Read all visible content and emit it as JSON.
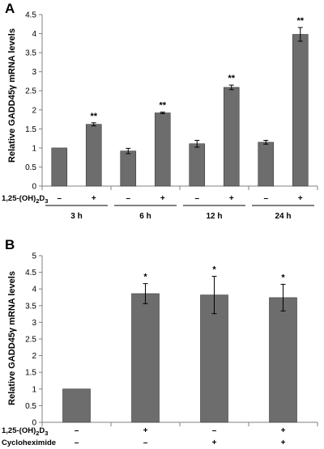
{
  "chart_data": [
    {
      "panel_label": "A",
      "type": "bar",
      "ylabel": "Relative GADD45γ mRNA levels",
      "ylim": [
        0,
        4.5
      ],
      "ytick_step": 0.5,
      "yticks": [
        "0",
        "0.5",
        "1",
        "1.5",
        "2",
        "2.5",
        "3",
        "3.5",
        "4",
        "4.5"
      ],
      "grid": false,
      "treatment_label": "1,25-(OH)2D3",
      "treatment_label_parts": [
        "1,25-(OH)",
        "2",
        "D",
        "3"
      ],
      "groups": [
        {
          "label": "3 h",
          "bars": [
            {
              "sign": "–",
              "value": 1.0,
              "err": 0,
              "sig": ""
            },
            {
              "sign": "+",
              "value": 1.62,
              "err": 0.04,
              "sig": "**"
            }
          ]
        },
        {
          "label": "6 h",
          "bars": [
            {
              "sign": "–",
              "value": 0.92,
              "err": 0.07,
              "sig": ""
            },
            {
              "sign": "+",
              "value": 1.92,
              "err": 0.02,
              "sig": "**"
            }
          ]
        },
        {
          "label": "12 h",
          "bars": [
            {
              "sign": "–",
              "value": 1.11,
              "err": 0.09,
              "sig": ""
            },
            {
              "sign": "+",
              "value": 2.59,
              "err": 0.06,
              "sig": "**"
            }
          ]
        },
        {
          "label": "24 h",
          "bars": [
            {
              "sign": "–",
              "value": 1.15,
              "err": 0.05,
              "sig": ""
            },
            {
              "sign": "+",
              "value": 3.98,
              "err": 0.18,
              "sig": "**"
            }
          ]
        }
      ]
    },
    {
      "panel_label": "B",
      "type": "bar",
      "ylabel": "Relative GADD45γ mRNA levels",
      "ylim": [
        0,
        5
      ],
      "ytick_step": 0.5,
      "yticks": [
        "0",
        "0.5",
        "1",
        "1.5",
        "2",
        "2.5",
        "3",
        "3.5",
        "4",
        "4.5",
        "5"
      ],
      "grid": false,
      "row_labels": [
        {
          "text": "1,25-(OH)2D3",
          "parts": [
            "1,25-(OH)",
            "2",
            "D",
            "3"
          ]
        },
        {
          "text": "Cycloheximide",
          "parts": [
            "Cycloheximide"
          ]
        }
      ],
      "bars": [
        {
          "value": 1.0,
          "err": 0,
          "sig": "",
          "signs": [
            "–",
            "–"
          ]
        },
        {
          "value": 3.86,
          "err": 0.3,
          "sig": "*",
          "signs": [
            "+",
            "–"
          ]
        },
        {
          "value": 3.82,
          "err": 0.56,
          "sig": "*",
          "signs": [
            "–",
            "+"
          ]
        },
        {
          "value": 3.74,
          "err": 0.4,
          "sig": "*",
          "signs": [
            "+",
            "+"
          ]
        }
      ]
    }
  ]
}
